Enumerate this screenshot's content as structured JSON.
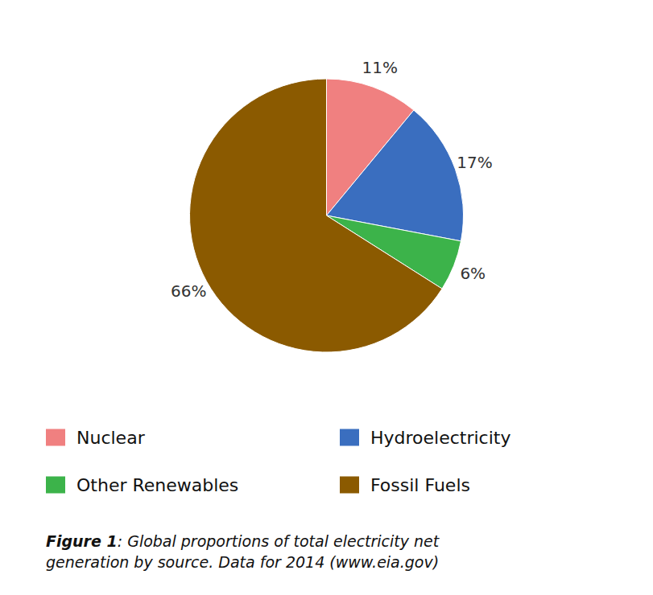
{
  "chart_data": {
    "type": "pie",
    "categories": [
      "Nuclear",
      "Hydroelectricity",
      "Other Renewables",
      "Fossil Fuels"
    ],
    "values": [
      11,
      17,
      6,
      66
    ],
    "value_labels": [
      "11%",
      "17%",
      "6%",
      "66%"
    ],
    "colors": [
      "#F08080",
      "#3A6EBF",
      "#3CB34A",
      "#8B5A00"
    ],
    "data_labels": true,
    "legend": "bottom",
    "annotations": [
      "Figure 1",
      ": Global proportions of total electricity net\ngeneration by source. Data for 2014 (www.eia.gov)"
    ]
  }
}
